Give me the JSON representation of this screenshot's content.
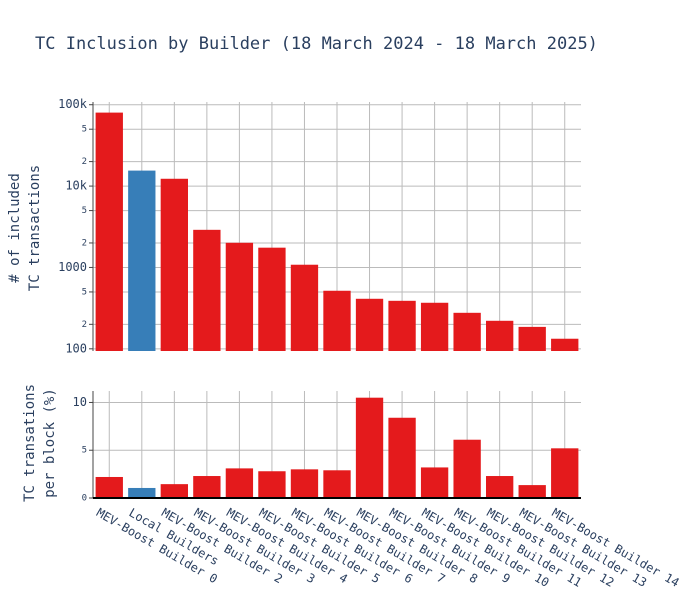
{
  "chart_data": [
    {
      "type": "bar",
      "title": "TC Inclusion by Builder (18 March 2024 - 18 March 2025)",
      "y_label": [
        "# of included",
        "TC transactions"
      ],
      "log_y": true,
      "grid": true,
      "values": [
        80000,
        15500,
        12300,
        2900,
        2010,
        1750,
        1080,
        517,
        412,
        389,
        368,
        277,
        221,
        186,
        133
      ],
      "colors": [
        "#e41a1c",
        "#377eb8",
        "#e41a1c",
        "#e41a1c",
        "#e41a1c",
        "#e41a1c",
        "#e41a1c",
        "#e41a1c",
        "#e41a1c",
        "#e41a1c",
        "#e41a1c",
        "#e41a1c",
        "#e41a1c",
        "#e41a1c",
        "#e41a1c"
      ],
      "ylim": [
        94,
        108000
      ],
      "yticks": [
        100,
        {
          "value": 200,
          "label": "2"
        },
        {
          "value": 500,
          "label": "5"
        },
        1000,
        {
          "value": 2000,
          "label": "2"
        },
        {
          "value": 5000,
          "label": "5"
        },
        {
          "value": 10000,
          "label": "10k"
        },
        {
          "value": 20000,
          "label": "2"
        },
        {
          "value": 50000,
          "label": "5"
        },
        {
          "value": 100000,
          "label": "100k"
        }
      ]
    },
    {
      "type": "bar",
      "y_label": [
        "TC transations",
        "per block (%)"
      ],
      "grid": true,
      "categories": [
        "MEV-Boost Builder 0",
        "Local Builders",
        "MEV-Boost Builder 2",
        "MEV-Boost Builder 3",
        "MEV-Boost Builder 4",
        "MEV-Boost Builder 5",
        "MEV-Boost Builder 6",
        "MEV-Boost Builder 7",
        "MEV-Boost Builder 8",
        "MEV-Boost Builder 9",
        "MEV-Boost Builder 10",
        "MEV-Boost Builder 11",
        "MEV-Boost Builder 12",
        "MEV-Boost Builder 13",
        "MEV-Boost Builder 14"
      ],
      "values": [
        2.2,
        1.05,
        1.45,
        2.3,
        3.1,
        2.8,
        3.0,
        2.9,
        10.5,
        8.4,
        3.2,
        6.1,
        2.3,
        1.35,
        5.2
      ],
      "colors": [
        "#e41a1c",
        "#377eb8",
        "#e41a1c",
        "#e41a1c",
        "#e41a1c",
        "#e41a1c",
        "#e41a1c",
        "#e41a1c",
        "#e41a1c",
        "#e41a1c",
        "#e41a1c",
        "#e41a1c",
        "#e41a1c",
        "#e41a1c",
        "#e41a1c"
      ],
      "ylim": [
        0,
        11.2
      ],
      "yticks": [
        0,
        5,
        10
      ]
    }
  ]
}
